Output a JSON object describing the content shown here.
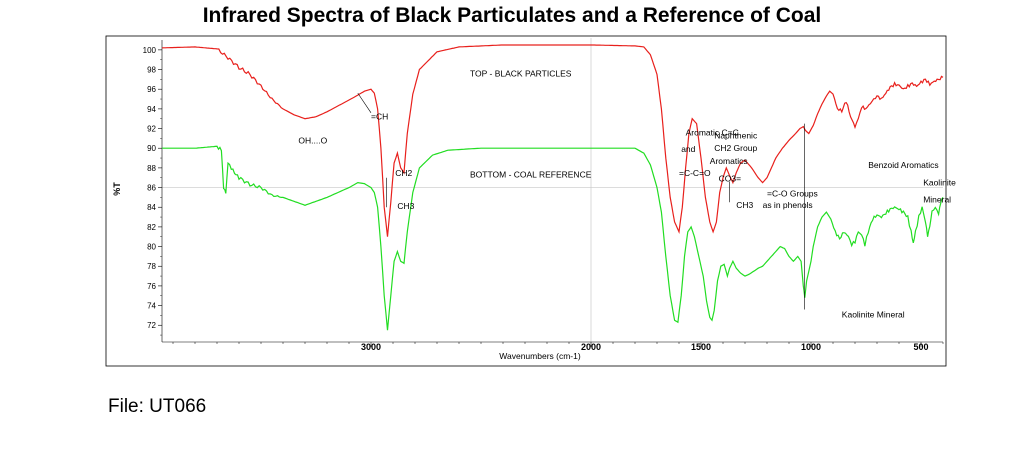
{
  "title": "Infrared Spectra of Black Particulates and a Reference of Coal",
  "file_caption": "File:  UT066",
  "chart_data": {
    "type": "line",
    "title": "Infrared Spectra of Black Particulates and a Reference of Coal",
    "xlabel": "Wavenumbers (cm-1)",
    "ylabel": "%T",
    "xlim": [
      3950,
      400
    ],
    "ylim": [
      70.5,
      100.8
    ],
    "x_reversed": true,
    "grid": "center crosshair only",
    "x_ticks": [
      3000,
      2000,
      1500,
      1000,
      500
    ],
    "y_ticks": [
      72,
      74,
      76,
      78,
      80,
      82,
      84,
      86,
      88,
      90,
      92,
      94,
      96,
      98,
      100
    ],
    "series": [
      {
        "color": "#e8201c",
        "points": [
          [
            3950,
            100.2
          ],
          [
            3800,
            100.3
          ],
          [
            3700,
            100.1
          ],
          [
            3650,
            99.2
          ],
          [
            3600,
            98.2
          ],
          [
            3550,
            97.5
          ],
          [
            3500,
            96.3
          ],
          [
            3450,
            95.0
          ],
          [
            3400,
            94.0
          ],
          [
            3350,
            93.4
          ],
          [
            3300,
            93.0
          ],
          [
            3250,
            93.2
          ],
          [
            3200,
            93.7
          ],
          [
            3150,
            94.3
          ],
          [
            3100,
            94.9
          ],
          [
            3060,
            95.4
          ],
          [
            3030,
            95.8
          ],
          [
            3000,
            96.0
          ],
          [
            2985,
            95.6
          ],
          [
            2970,
            94.0
          ],
          [
            2955,
            90.0
          ],
          [
            2940,
            84.0
          ],
          [
            2925,
            81.0
          ],
          [
            2910,
            84.5
          ],
          [
            2895,
            88.5
          ],
          [
            2880,
            89.5
          ],
          [
            2865,
            88.0
          ],
          [
            2850,
            87.5
          ],
          [
            2835,
            91.5
          ],
          [
            2810,
            95.5
          ],
          [
            2780,
            98.0
          ],
          [
            2700,
            99.8
          ],
          [
            2600,
            100.3
          ],
          [
            2400,
            100.5
          ],
          [
            2000,
            100.5
          ],
          [
            1800,
            100.4
          ],
          [
            1760,
            100.3
          ],
          [
            1730,
            99.5
          ],
          [
            1700,
            97.5
          ],
          [
            1680,
            94.0
          ],
          [
            1660,
            89.0
          ],
          [
            1640,
            85.0
          ],
          [
            1620,
            82.5
          ],
          [
            1600,
            81.5
          ],
          [
            1585,
            84.0
          ],
          [
            1570,
            88.0
          ],
          [
            1555,
            91.5
          ],
          [
            1540,
            93.0
          ],
          [
            1520,
            92.5
          ],
          [
            1500,
            89.0
          ],
          [
            1480,
            85.0
          ],
          [
            1460,
            82.5
          ],
          [
            1445,
            81.5
          ],
          [
            1430,
            82.5
          ],
          [
            1415,
            85.5
          ],
          [
            1400,
            87.0
          ],
          [
            1385,
            88.0
          ],
          [
            1370,
            87.2
          ],
          [
            1355,
            86.5
          ],
          [
            1340,
            87.5
          ],
          [
            1320,
            88.5
          ],
          [
            1300,
            88.8
          ],
          [
            1270,
            88.0
          ],
          [
            1240,
            87.0
          ],
          [
            1220,
            86.5
          ],
          [
            1200,
            87.0
          ],
          [
            1180,
            88.0
          ],
          [
            1160,
            89.0
          ],
          [
            1130,
            90.0
          ],
          [
            1100,
            90.8
          ],
          [
            1070,
            91.5
          ],
          [
            1050,
            92.0
          ],
          [
            1035,
            92.2
          ],
          [
            1025,
            91.8
          ],
          [
            1010,
            91.5
          ],
          [
            990,
            92.3
          ],
          [
            970,
            93.5
          ],
          [
            950,
            94.5
          ],
          [
            930,
            95.3
          ],
          [
            915,
            95.8
          ],
          [
            900,
            95.5
          ],
          [
            880,
            94.0
          ],
          [
            860,
            93.8
          ],
          [
            840,
            94.8
          ],
          [
            820,
            93.2
          ],
          [
            800,
            92.2
          ],
          [
            785,
            93.0
          ],
          [
            770,
            94.2
          ],
          [
            750,
            94.0
          ],
          [
            730,
            94.6
          ],
          [
            700,
            95.3
          ],
          [
            680,
            95.0
          ],
          [
            660,
            95.6
          ],
          [
            640,
            96.2
          ],
          [
            620,
            96.5
          ],
          [
            600,
            96.4
          ],
          [
            580,
            96.0
          ],
          [
            560,
            96.3
          ],
          [
            540,
            96.6
          ],
          [
            520,
            96.3
          ],
          [
            500,
            96.7
          ],
          [
            480,
            97.0
          ],
          [
            460,
            96.5
          ],
          [
            440,
            96.8
          ],
          [
            420,
            97.0
          ],
          [
            400,
            97.2
          ]
        ]
      },
      {
        "color": "#22dd22",
        "points": [
          [
            3950,
            90.0
          ],
          [
            3800,
            90.0
          ],
          [
            3700,
            90.2
          ],
          [
            3680,
            89.8
          ],
          [
            3670,
            86.0
          ],
          [
            3660,
            85.5
          ],
          [
            3650,
            88.5
          ],
          [
            3620,
            87.5
          ],
          [
            3600,
            87.0
          ],
          [
            3550,
            86.3
          ],
          [
            3500,
            86.0
          ],
          [
            3450,
            85.2
          ],
          [
            3400,
            85.0
          ],
          [
            3350,
            84.6
          ],
          [
            3300,
            84.2
          ],
          [
            3250,
            84.6
          ],
          [
            3200,
            85.0
          ],
          [
            3150,
            85.5
          ],
          [
            3100,
            86.0
          ],
          [
            3060,
            86.5
          ],
          [
            3030,
            86.4
          ],
          [
            3000,
            86.0
          ],
          [
            2985,
            85.5
          ],
          [
            2970,
            84.0
          ],
          [
            2955,
            80.0
          ],
          [
            2940,
            75.0
          ],
          [
            2925,
            71.5
          ],
          [
            2910,
            75.0
          ],
          [
            2895,
            78.5
          ],
          [
            2880,
            79.5
          ],
          [
            2865,
            78.5
          ],
          [
            2850,
            78.3
          ],
          [
            2835,
            81.5
          ],
          [
            2810,
            85.5
          ],
          [
            2780,
            88.0
          ],
          [
            2720,
            89.3
          ],
          [
            2650,
            89.8
          ],
          [
            2500,
            90.0
          ],
          [
            2200,
            90.0
          ],
          [
            1800,
            90.0
          ],
          [
            1760,
            89.5
          ],
          [
            1730,
            88.3
          ],
          [
            1700,
            86.0
          ],
          [
            1680,
            83.5
          ],
          [
            1660,
            79.0
          ],
          [
            1640,
            75.0
          ],
          [
            1620,
            72.5
          ],
          [
            1605,
            72.3
          ],
          [
            1590,
            75.0
          ],
          [
            1575,
            79.0
          ],
          [
            1560,
            81.5
          ],
          [
            1545,
            82.0
          ],
          [
            1530,
            81.0
          ],
          [
            1510,
            79.0
          ],
          [
            1490,
            77.0
          ],
          [
            1475,
            74.5
          ],
          [
            1460,
            72.8
          ],
          [
            1450,
            72.5
          ],
          [
            1440,
            73.5
          ],
          [
            1425,
            76.5
          ],
          [
            1410,
            78.0
          ],
          [
            1395,
            78.2
          ],
          [
            1380,
            77.0
          ],
          [
            1370,
            77.8
          ],
          [
            1355,
            78.5
          ],
          [
            1340,
            77.8
          ],
          [
            1320,
            77.3
          ],
          [
            1300,
            77.0
          ],
          [
            1280,
            77.2
          ],
          [
            1260,
            77.5
          ],
          [
            1240,
            77.8
          ],
          [
            1220,
            78.0
          ],
          [
            1200,
            78.5
          ],
          [
            1180,
            79.0
          ],
          [
            1160,
            79.5
          ],
          [
            1140,
            80.0
          ],
          [
            1120,
            79.8
          ],
          [
            1100,
            79.0
          ],
          [
            1080,
            78.5
          ],
          [
            1060,
            79.0
          ],
          [
            1045,
            78.5
          ],
          [
            1035,
            76.0
          ],
          [
            1028,
            74.8
          ],
          [
            1020,
            76.5
          ],
          [
            1010,
            77.5
          ],
          [
            1000,
            78.5
          ],
          [
            990,
            80.0
          ],
          [
            970,
            82.0
          ],
          [
            950,
            83.0
          ],
          [
            930,
            83.5
          ],
          [
            910,
            82.8
          ],
          [
            890,
            81.5
          ],
          [
            870,
            80.8
          ],
          [
            850,
            81.5
          ],
          [
            830,
            81.0
          ],
          [
            815,
            80.2
          ],
          [
            800,
            80.5
          ],
          [
            785,
            81.5
          ],
          [
            770,
            81.2
          ],
          [
            755,
            80.2
          ],
          [
            740,
            81.5
          ],
          [
            720,
            82.8
          ],
          [
            700,
            83.2
          ],
          [
            680,
            83.0
          ],
          [
            660,
            83.4
          ],
          [
            640,
            83.8
          ],
          [
            620,
            84.0
          ],
          [
            600,
            83.8
          ],
          [
            580,
            83.5
          ],
          [
            560,
            83.0
          ],
          [
            545,
            81.5
          ],
          [
            535,
            80.2
          ],
          [
            525,
            81.5
          ],
          [
            510,
            83.0
          ],
          [
            495,
            84.0
          ],
          [
            480,
            82.5
          ],
          [
            470,
            81.0
          ],
          [
            460,
            82.0
          ],
          [
            450,
            83.5
          ],
          [
            435,
            84.0
          ],
          [
            420,
            83.3
          ],
          [
            410,
            84.5
          ],
          [
            400,
            85.0
          ]
        ]
      }
    ],
    "annotations": [
      {
        "text": "TOP - BLACK PARTICLES",
        "x": 2550,
        "y": 97.3
      },
      {
        "text": "BOTTOM - COAL REFERENCE",
        "x": 2550,
        "y": 87.0
      },
      {
        "text": "OH....O",
        "x": 3330,
        "y": 90.5
      },
      {
        "text": "=CH",
        "x": 3000,
        "y": 92.9
      },
      {
        "text": "CH2",
        "x": 2890,
        "y": 87.2
      },
      {
        "text": "CH3",
        "x": 2880,
        "y": 83.8
      },
      {
        "text": "Aromatic C=C",
        "x": 1570,
        "y": 91.3
      },
      {
        "text": "and",
        "x": 1590,
        "y": 89.6
      },
      {
        "text": "=C-C=O",
        "x": 1600,
        "y": 87.2
      },
      {
        "text": "Naphthenic",
        "x": 1440,
        "y": 91.0
      },
      {
        "text": "CH2 Group",
        "x": 1440,
        "y": 89.7
      },
      {
        "text": "Aromatics",
        "x": 1460,
        "y": 88.4
      },
      {
        "text": "CO3=",
        "x": 1420,
        "y": 86.6
      },
      {
        "text": "CH3",
        "x": 1340,
        "y": 83.9
      },
      {
        "text": "=C-O Groups",
        "x": 1200,
        "y": 85.1
      },
      {
        "text": "as in phenols",
        "x": 1220,
        "y": 83.9
      },
      {
        "text": "Benzoid Aromatics",
        "x": 740,
        "y": 88.0
      },
      {
        "text": "Kaolinite",
        "x": 490,
        "y": 86.2
      },
      {
        "text": "Mineral",
        "x": 490,
        "y": 84.5
      },
      {
        "text": "Kaolinite Mineral",
        "x": 860,
        "y": 72.8
      }
    ]
  }
}
